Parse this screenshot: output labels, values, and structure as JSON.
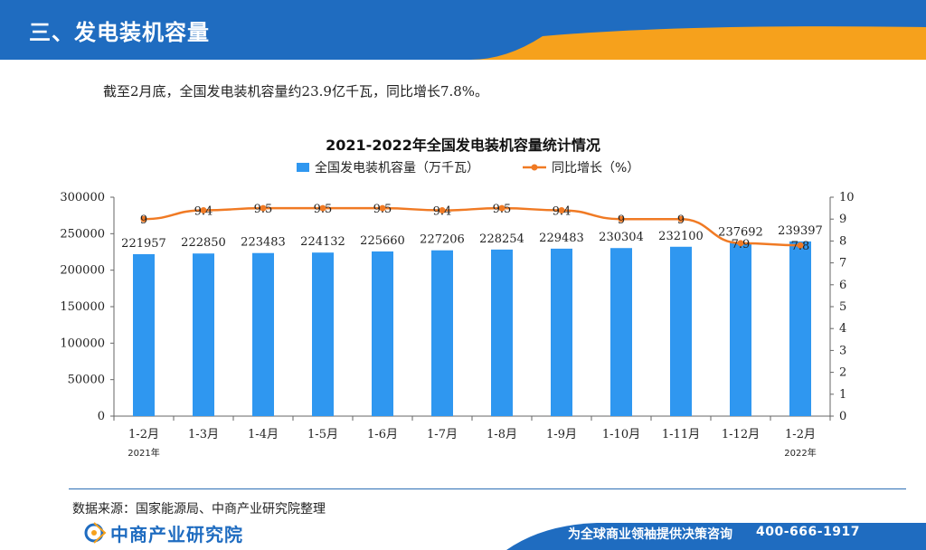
{
  "header": {
    "title": "三、发电装机容量"
  },
  "intro": "截至2月底，全国发电装机容量约23.9亿千瓦，同比增长7.8%。",
  "source": "数据来源：国家能源局、中商产业研究院整理",
  "footer": {
    "logo_text": "中商产业研究院",
    "slogan": "为全球商业领袖提供决策咨询",
    "phone": "400-666-1917"
  },
  "colors": {
    "bar": "#2f97f0",
    "line": "#f07a24",
    "header_blue": "#1f6cc0",
    "header_orange": "#f6a11c"
  },
  "chart_data": {
    "type": "bar",
    "title": "2021-2022年全国发电装机容量统计情况",
    "categories": [
      "1-2月",
      "1-3月",
      "1-4月",
      "1-5月",
      "1-6月",
      "1-7月",
      "1-8月",
      "1-9月",
      "1-10月",
      "1-11月",
      "1-12月",
      "1-2月"
    ],
    "year_labels": [
      "2021年",
      "2022年"
    ],
    "series": [
      {
        "name": "全国发电装机容量（万千瓦）",
        "type": "bar",
        "axis": "left",
        "values": [
          221957,
          222850,
          223483,
          224132,
          225660,
          227206,
          228254,
          229483,
          230304,
          232100,
          237692,
          239397
        ]
      },
      {
        "name": "同比增长（%）",
        "type": "line",
        "axis": "right",
        "values": [
          9,
          9.4,
          9.5,
          9.5,
          9.5,
          9.4,
          9.5,
          9.4,
          9,
          9,
          7.9,
          7.8
        ]
      }
    ],
    "value_labels": {
      "bars": [
        "221957",
        "222850",
        "223483",
        "224132",
        "225660",
        "227206",
        "228254",
        "229483",
        "230304",
        "232100",
        "237692",
        "239397"
      ],
      "line": [
        "9",
        "9.4",
        "9.5",
        "9.5",
        "9.5",
        "9.4",
        "9.5",
        "9.4",
        "9",
        "9",
        "7.9",
        "7.8"
      ]
    },
    "y_left": {
      "range": [
        0,
        300000
      ],
      "ticks": [
        0,
        50000,
        100000,
        150000,
        200000,
        250000,
        300000
      ]
    },
    "y_right": {
      "range": [
        0,
        10
      ],
      "ticks": [
        0,
        1,
        2,
        3,
        4,
        5,
        6,
        7,
        8,
        9,
        10
      ]
    },
    "legend_position": "top-center",
    "grid": false
  }
}
